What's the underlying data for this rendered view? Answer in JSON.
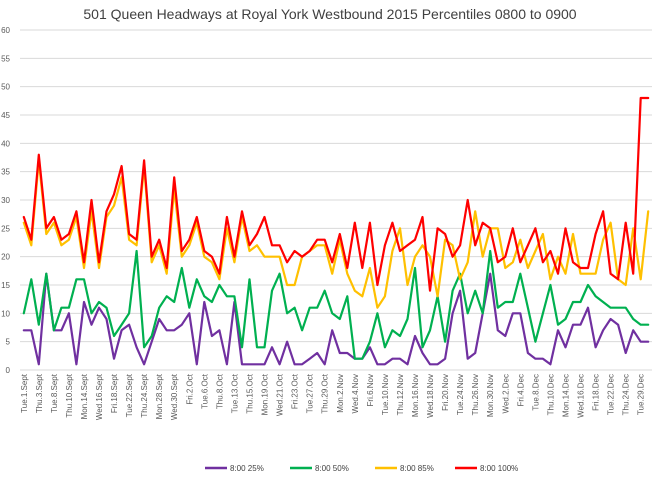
{
  "chart_data": {
    "type": "line",
    "title": "501 Queen Headways at Royal York Westbound 2015 Percentiles 0800 to 0900",
    "xlabel": "",
    "ylabel": "",
    "ylim": [
      0,
      60
    ],
    "yticks": [
      0,
      5,
      10,
      15,
      20,
      25,
      30,
      35,
      40,
      45,
      50,
      55,
      60
    ],
    "grid": true,
    "legend_position": "bottom",
    "categories": [
      "Tue.1.Sept",
      "Wed.2.Sept",
      "Thu.3.Sept",
      "Fri.4.Sept",
      "Tue.8.Sept",
      "Wed.9.Sept",
      "Thu.10.Sept",
      "Fri.11.Sept",
      "Mon.14.Sept",
      "Tue.15.Sept",
      "Wed.16.Sept",
      "Thu.17.Sept",
      "Fri.18.Sept",
      "Mon.21.Sept",
      "Tue.22.Sept",
      "Wed.23.Sept",
      "Thu.24.Sept",
      "Fri.25.Sept",
      "Mon.28.Sept",
      "Tue.29.Sept",
      "Wed.30.Sept",
      "Thu.1.Oct",
      "Fri.2.Oct",
      "Mon.5.Oct",
      "Tue.6.Oct",
      "Wed.7.Oct",
      "Thu.8.Oct",
      "Fri.9.Oct",
      "Tue.13.Oct",
      "Wed.14.Oct",
      "Thu.15.Oct",
      "Fri.16.Oct",
      "Mon.19.Oct",
      "Tue.20.Oct",
      "Wed.21.Oct",
      "Thu.22.Oct",
      "Fri.23.Oct",
      "Mon.26.Oct",
      "Tue.27.Oct",
      "Wed.28.Oct",
      "Thu.29.Oct",
      "Fri.30.Oct",
      "Mon.2.Nov",
      "Tue.3.Nov",
      "Wed.4.Nov",
      "Thu.5.Nov",
      "Fri.6.Nov",
      "Mon.9.Nov",
      "Tue.10.Nov",
      "Wed.11.Nov",
      "Thu.12.Nov",
      "Fri.13.Nov",
      "Mon.16.Nov",
      "Tue.17.Nov",
      "Wed.18.Nov",
      "Thu.19.Nov",
      "Fri.20.Nov",
      "Mon.23.Nov",
      "Tue.24.Nov",
      "Wed.25.Nov",
      "Thu.26.Nov",
      "Fri.27.Nov",
      "Mon.30.Nov",
      "Tue.1.Dec",
      "Wed.2.Dec",
      "Thu.3.Dec",
      "Fri.4.Dec",
      "Mon.7.Dec",
      "Tue.8.Dec",
      "Wed.9.Dec",
      "Thu.10.Dec",
      "Fri.11.Dec",
      "Mon.14.Dec",
      "Tue.15.Dec",
      "Wed.16.Dec",
      "Thu.17.Dec",
      "Fri.18.Dec",
      "Mon.21.Dec",
      "Tue.22.Dec",
      "Wed.23.Dec",
      "Thu.24.Dec",
      "Mon.28.Dec",
      "Tue.29.Dec",
      "Wed.30.Dec"
    ],
    "tick_labels": [
      "Tue.1.Sept",
      "Thu.3.Sept",
      "Tue.8.Sept",
      "Thu.10.Sept",
      "Mon.14.Sept",
      "Wed.16.Sept",
      "Fri.18.Sept",
      "Tue.22.Sept",
      "Thu.24.Sept",
      "Mon.28.Sept",
      "Wed.30.Sept",
      "Fri.2.Oct",
      "Tue.6.Oct",
      "Thu.8.Oct",
      "Tue.13.Oct",
      "Thu.15.Oct",
      "Mon.19.Oct",
      "Wed.21.Oct",
      "Fri.23.Oct",
      "Tue.27.Oct",
      "Thu.29.Oct",
      "Mon.2.Nov",
      "Wed.4.Nov",
      "Fri.6.Nov",
      "Tue.10.Nov",
      "Thu.12.Nov",
      "Mon.16.Nov",
      "Wed.18.Nov",
      "Fri.20.Nov",
      "Tue.24.Nov",
      "Thu.26.Nov",
      "Mon.30.Nov",
      "Wed.2.Dec",
      "Fri.4.Dec",
      "Tue.8.Dec",
      "Thu.10.Dec",
      "Mon.14.Dec",
      "Wed.16.Dec",
      "Fri.18.Dec",
      "Tue.22.Dec",
      "Thu.24.Dec",
      "Tue.29.Dec"
    ],
    "series": [
      {
        "name": "8:00 25%",
        "color": "#7030A0",
        "values": [
          7,
          7,
          1,
          17,
          7,
          7,
          10,
          1,
          12,
          8,
          11,
          9,
          2,
          7,
          8,
          4,
          1,
          5,
          9,
          7,
          7,
          8,
          10,
          1,
          12,
          6,
          7,
          1,
          12,
          1,
          1,
          1,
          1,
          4,
          1,
          5,
          1,
          1,
          2,
          3,
          1,
          7,
          3,
          3,
          2,
          2,
          4,
          1,
          1,
          2,
          2,
          1,
          6,
          3,
          1,
          1,
          2,
          10,
          14,
          2,
          3,
          10,
          17,
          7,
          6,
          10,
          10,
          3,
          2,
          2,
          1,
          7,
          4,
          8,
          8,
          11,
          4,
          7,
          9,
          8,
          3,
          7,
          5,
          5
        ]
      },
      {
        "name": "8:00 50%",
        "color": "#00B050",
        "values": [
          10,
          16,
          8,
          17,
          7,
          11,
          11,
          16,
          16,
          10,
          12,
          11,
          6,
          8,
          10,
          21,
          4,
          6,
          11,
          13,
          12,
          18,
          11,
          16,
          13,
          12,
          15,
          13,
          13,
          4,
          16,
          4,
          4,
          14,
          17,
          10,
          11,
          7,
          11,
          11,
          14,
          10,
          9,
          13,
          2,
          2,
          5,
          10,
          4,
          7,
          6,
          9,
          18,
          4,
          7,
          13,
          5,
          14,
          17,
          10,
          14,
          10,
          21,
          11,
          12,
          12,
          17,
          11,
          5,
          10,
          15,
          8,
          9,
          12,
          12,
          15,
          13,
          12,
          11,
          11,
          11,
          9,
          8,
          8
        ]
      },
      {
        "name": "8:00 85%",
        "color": "#FFC000",
        "values": [
          26,
          22,
          37,
          24,
          26,
          22,
          23,
          27,
          18,
          28,
          18,
          27,
          29,
          34,
          23,
          22,
          36,
          19,
          22,
          17,
          32,
          20,
          22,
          26,
          20,
          19,
          16,
          25,
          19,
          27,
          21,
          22,
          20,
          20,
          20,
          15,
          15,
          20,
          21,
          22,
          22,
          17,
          23,
          17,
          14,
          13,
          18,
          11,
          13,
          21,
          25,
          15,
          20,
          22,
          20,
          13,
          23,
          22,
          16,
          19,
          28,
          20,
          25,
          25,
          18,
          19,
          23,
          18,
          21,
          24,
          16,
          20,
          17,
          24,
          17,
          17,
          17,
          23,
          26,
          16,
          15,
          25,
          16,
          28
        ]
      },
      {
        "name": "8:00 100%",
        "color": "#FF0000",
        "values": [
          27,
          23,
          38,
          25,
          27,
          23,
          24,
          28,
          19,
          30,
          19,
          28,
          31,
          36,
          24,
          23,
          37,
          20,
          23,
          18,
          34,
          21,
          23,
          27,
          21,
          20,
          17,
          27,
          20,
          28,
          22,
          24,
          27,
          22,
          22,
          19,
          21,
          20,
          21,
          23,
          23,
          19,
          24,
          18,
          26,
          18,
          26,
          15,
          22,
          26,
          21,
          22,
          23,
          27,
          14,
          25,
          24,
          20,
          22,
          30,
          22,
          26,
          25,
          19,
          20,
          25,
          19,
          22,
          25,
          19,
          21,
          17,
          25,
          19,
          18,
          18,
          24,
          28,
          17,
          16,
          26,
          17,
          48,
          48
        ]
      }
    ]
  }
}
